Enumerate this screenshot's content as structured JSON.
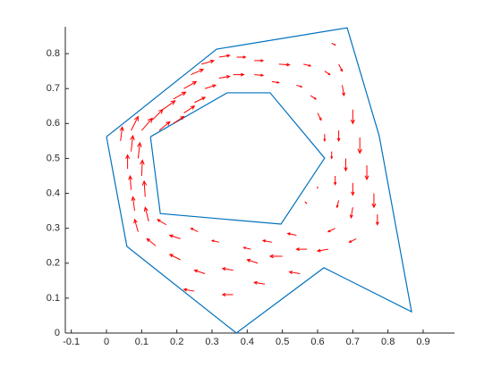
{
  "chart_data": {
    "type": "quiver",
    "xlim": [
      -0.117,
      0.989
    ],
    "ylim": [
      0,
      0.877
    ],
    "xticks": [
      -0.1,
      0,
      0.1,
      0.2,
      0.3,
      0.4,
      0.5,
      0.6,
      0.7,
      0.8,
      0.9
    ],
    "yticks": [
      0,
      0.1,
      0.2,
      0.3,
      0.4,
      0.5,
      0.6,
      0.7,
      0.8
    ],
    "polygons": [
      {
        "color": "#0072bd",
        "x": [
          0,
          0.313,
          0.684,
          0.775,
          0.867,
          0.618,
          0.369,
          0.058,
          0
        ],
        "y": [
          0.562,
          0.813,
          0.874,
          0.565,
          0.061,
          0.187,
          0,
          0.248,
          0.562
        ]
      },
      {
        "color": "#0072bd",
        "x": [
          0.125,
          0.343,
          0.465,
          0.62,
          0.496,
          0.153,
          0.125
        ],
        "y": [
          0.562,
          0.688,
          0.688,
          0.501,
          0.312,
          0.342,
          0.562
        ]
      }
    ],
    "arrows": {
      "color": "#ff0000",
      "x": [
        0.04,
        0.07,
        0.07,
        0.09,
        0.06,
        0.1,
        0.07,
        0.11,
        0.08,
        0.12,
        0.09,
        0.1,
        0.13,
        0.16,
        0.19,
        0.22,
        0.24,
        0.27,
        0.15,
        0.19,
        0.22,
        0.25,
        0.28,
        0.32,
        0.32,
        0.37,
        0.42,
        0.49,
        0.56,
        0.36,
        0.42,
        0.47,
        0.54,
        0.58,
        0.62,
        0.66,
        0.64,
        0.67,
        0.7,
        0.72,
        0.74,
        0.76,
        0.77,
        0.66,
        0.68,
        0.7,
        0.7,
        0.64,
        0.65,
        0.66,
        0.6,
        0.62,
        0.71,
        0.65,
        0.63,
        0.57,
        0.5,
        0.43,
        0.36,
        0.28,
        0.25,
        0.36,
        0.54,
        0.47,
        0.41,
        0.32,
        0.26,
        0.21,
        0.17,
        0.14,
        0.21,
        0.55,
        0.45,
        0.57,
        0.6
      ],
      "y": [
        0.55,
        0.58,
        0.52,
        0.5,
        0.47,
        0.45,
        0.41,
        0.39,
        0.35,
        0.32,
        0.29,
        0.58,
        0.61,
        0.64,
        0.67,
        0.7,
        0.74,
        0.77,
        0.58,
        0.6,
        0.63,
        0.66,
        0.7,
        0.73,
        0.79,
        0.79,
        0.78,
        0.77,
        0.77,
        0.74,
        0.74,
        0.72,
        0.71,
        0.68,
        0.75,
        0.77,
        0.83,
        0.71,
        0.64,
        0.56,
        0.48,
        0.4,
        0.34,
        0.58,
        0.5,
        0.43,
        0.36,
        0.52,
        0.45,
        0.38,
        0.63,
        0.57,
        0.27,
        0.3,
        0.24,
        0.24,
        0.22,
        0.2,
        0.18,
        0.17,
        0.12,
        0.11,
        0.28,
        0.26,
        0.24,
        0.26,
        0.29,
        0.27,
        0.31,
        0.25,
        0.21,
        0.17,
        0.14,
        0.37,
        0.42
      ],
      "u": [
        0.005,
        0.02,
        0.005,
        0.005,
        0,
        0.002,
        -0.003,
        -0.003,
        -0.005,
        -0.01,
        -0.01,
        0.03,
        0.03,
        0.035,
        0.035,
        0.035,
        0.035,
        0.035,
        0.03,
        0.03,
        0.03,
        0.03,
        0.03,
        0.03,
        0.03,
        0.025,
        0.025,
        0.03,
        0.02,
        0.03,
        0.025,
        0.02,
        0.015,
        0.015,
        0.015,
        0.01,
        0.01,
        0.005,
        0,
        0,
        0,
        0,
        0,
        0,
        0,
        0,
        -0.005,
        0,
        0,
        -0.005,
        0.01,
        0,
        -0.02,
        -0.02,
        -0.03,
        -0.03,
        -0.035,
        -0.03,
        -0.03,
        -0.03,
        -0.03,
        -0.03,
        -0.025,
        -0.025,
        -0.02,
        -0.02,
        -0.02,
        -0.03,
        -0.025,
        -0.025,
        -0.03,
        -0.03,
        -0.03,
        -0.005,
        0
      ],
      "v": [
        0.04,
        0.04,
        0.045,
        0.045,
        0.04,
        0.045,
        0.04,
        0.045,
        0.04,
        0.04,
        0.035,
        0.035,
        0.03,
        0.025,
        0.02,
        0.02,
        0.015,
        0.01,
        0.025,
        0.02,
        0.02,
        0.015,
        0.01,
        0.005,
        0.005,
        0,
        0,
        -0.002,
        -0.005,
        0,
        -0.002,
        -0.003,
        -0.005,
        -0.01,
        -0.01,
        -0.02,
        -0.005,
        -0.03,
        -0.04,
        -0.045,
        -0.04,
        -0.04,
        -0.03,
        -0.03,
        -0.035,
        -0.035,
        -0.03,
        -0.02,
        -0.025,
        -0.02,
        -0.02,
        -0.02,
        -0.01,
        -0.01,
        -0.005,
        0,
        0,
        0.01,
        0.005,
        0.01,
        0.005,
        0,
        0.005,
        0.005,
        0.005,
        0.005,
        0.01,
        0.01,
        0.015,
        0.02,
        0.015,
        0.005,
        0.005,
        0.005,
        -0.005
      ]
    }
  }
}
